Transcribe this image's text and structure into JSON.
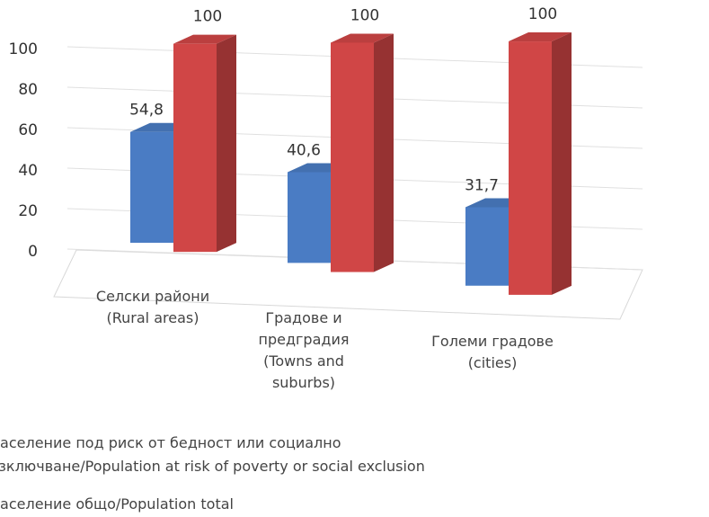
{
  "chart_data": {
    "type": "bar3d",
    "categories": [
      "Селски райони (Rural areas)",
      "Градове и предградия (Towns and suburbs)",
      "Големи градове (cities)"
    ],
    "series": [
      {
        "name": "Население под риск от бедност или социално изключване/Population at risk of poverty or social exclusion",
        "color": "#4a7cc4",
        "values": [
          54.8,
          40.6,
          31.7
        ],
        "value_labels": [
          "54,8",
          "40,6",
          "31,7"
        ]
      },
      {
        "name": "Население общо/Population total",
        "color": "#d04646",
        "values": [
          100,
          100,
          100
        ]
      }
    ],
    "ylim": [
      0,
      100
    ],
    "yticks": [
      0,
      20,
      40,
      60,
      80,
      100
    ],
    "grid": true
  }
}
